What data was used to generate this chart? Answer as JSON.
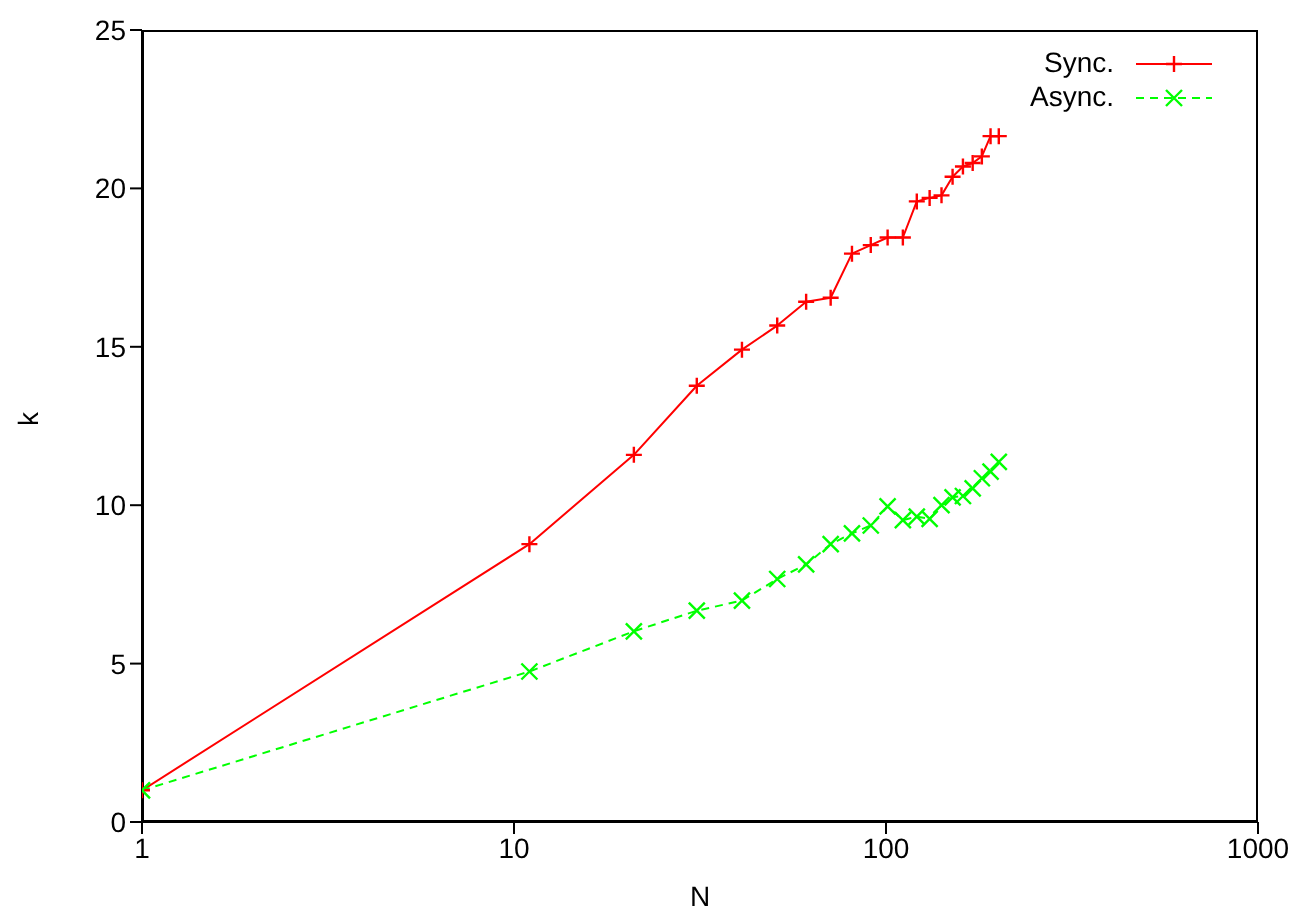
{
  "chart_data": {
    "type": "line",
    "xlabel": "N",
    "ylabel": "k",
    "x": [
      1,
      11,
      21,
      31,
      41,
      51,
      61,
      71,
      81,
      91,
      101,
      111,
      121,
      131,
      141,
      151,
      161,
      171,
      181,
      191,
      201
    ],
    "series": [
      {
        "name": "Sync.",
        "color": "#ff0000",
        "line_style": "solid",
        "marker": "plus",
        "values": [
          1,
          8.77,
          11.59,
          13.77,
          14.91,
          15.67,
          16.42,
          16.55,
          17.94,
          18.21,
          18.45,
          18.45,
          19.59,
          19.7,
          19.78,
          20.37,
          20.69,
          20.8,
          21.01,
          21.65,
          21.65
        ]
      },
      {
        "name": "Async.",
        "color": "#00ff00",
        "line_style": "dashed",
        "marker": "cross",
        "values": [
          1,
          4.75,
          6.02,
          6.67,
          6.99,
          7.67,
          8.13,
          8.77,
          9.11,
          9.36,
          9.96,
          9.53,
          9.64,
          9.57,
          10.0,
          10.25,
          10.29,
          10.53,
          10.85,
          11.06,
          11.37
        ]
      }
    ],
    "log": "x",
    "xlim": [
      1,
      1000
    ],
    "xticks": [
      1,
      10,
      100,
      1000
    ],
    "ylim": [
      0,
      25
    ],
    "yticks": [
      0,
      5,
      10,
      15,
      20,
      25
    ],
    "legend": "top right"
  }
}
